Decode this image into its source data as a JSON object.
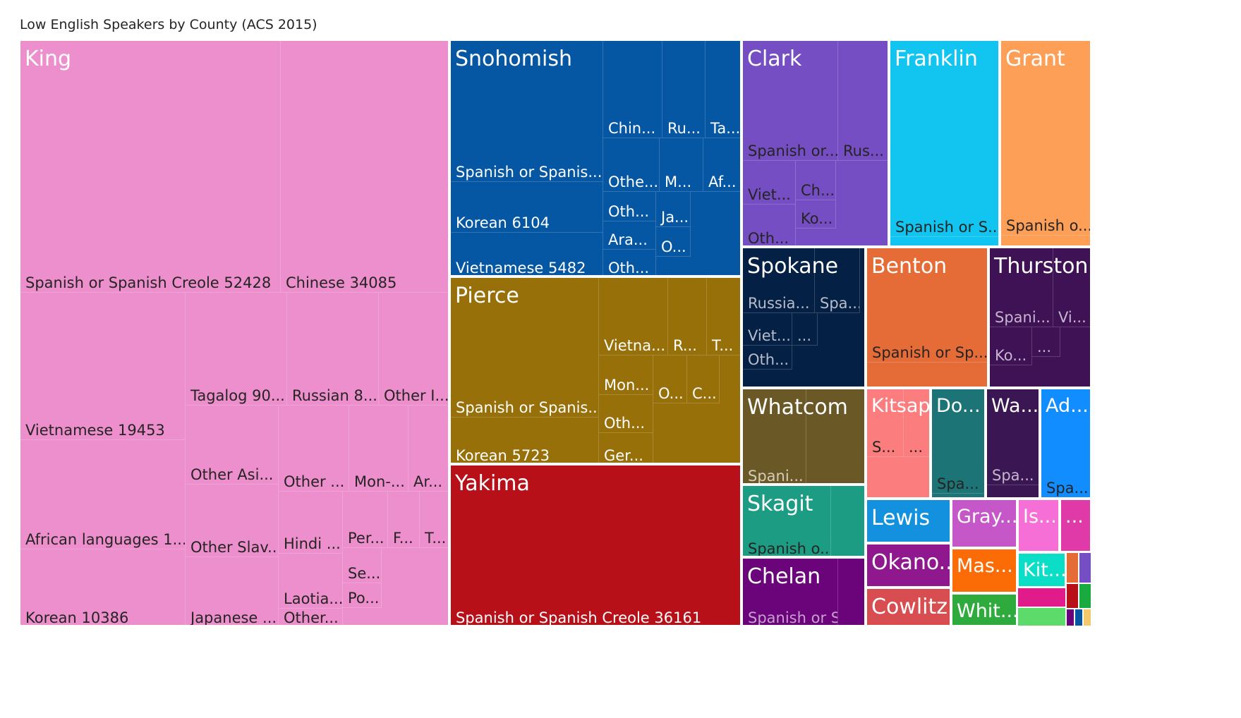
{
  "chart_title": "Low English Speakers by County (ACS 2015)",
  "chart_data": {
    "type": "treemap",
    "title": "Low English Speakers by County (ACS 2015)",
    "counties": [
      {
        "name": "King",
        "color": "#ed8fcc",
        "text_color": "#252423",
        "languages": [
          {
            "label": "Spanish or Spanish Creole 52428",
            "value": 52428
          },
          {
            "label": "Chinese 34085",
            "value": 34085
          },
          {
            "label": "Vietnamese 19453",
            "value": 19453
          },
          {
            "label": "African languages 1...",
            "value": 14400
          },
          {
            "label": "Korean 10386",
            "value": 10386
          },
          {
            "label": "Tagalog 90...",
            "value": 9000
          },
          {
            "label": "Russian 8...",
            "value": 8000
          },
          {
            "label": "Other I...",
            "value": 6000
          },
          {
            "label": "Other Asi...",
            "value": 5100
          },
          {
            "label": "Other ...",
            "value": 4900
          },
          {
            "label": "Mon-...",
            "value": 3600
          },
          {
            "label": "Ar...",
            "value": 2200
          },
          {
            "label": "Other Slav...",
            "value": 3900
          },
          {
            "label": "Hindi ...",
            "value": 2600
          },
          {
            "label": "Per...",
            "value": 1800
          },
          {
            "label": "F...",
            "value": 1100
          },
          {
            "label": "T...",
            "value": 1100
          },
          {
            "label": "Japanese ...",
            "value": 3500
          },
          {
            "label": "Laotia...",
            "value": 2200
          },
          {
            "label": "Se...",
            "value": 1200
          },
          {
            "label": "Po...",
            "value": 1100
          },
          {
            "label": "Other...",
            "value": 2400
          }
        ]
      },
      {
        "name": "Snohomish",
        "color": "#0556a3",
        "text_color": "#ffffff",
        "languages": [
          {
            "label": "Spanish or Spanis...",
            "value": 14000
          },
          {
            "label": "Korean 6104",
            "value": 6104
          },
          {
            "label": "Vietnamese 5482",
            "value": 5482
          },
          {
            "label": "Chin...",
            "value": 2500
          },
          {
            "label": "Ru...",
            "value": 1800
          },
          {
            "label": "Ta...",
            "value": 1600
          },
          {
            "label": "Othe...",
            "value": 1500
          },
          {
            "label": "M...",
            "value": 1200
          },
          {
            "label": "Af...",
            "value": 1100
          },
          {
            "label": "Oth...",
            "value": 1000
          },
          {
            "label": "Ja...",
            "value": 700
          },
          {
            "label": "Ara...",
            "value": 800
          },
          {
            "label": "O...",
            "value": 600
          },
          {
            "label": "Oth...",
            "value": 700
          }
        ]
      },
      {
        "name": "Pierce",
        "color": "#987009",
        "text_color": "#ffffff",
        "languages": [
          {
            "label": "Spanish or Spanis...",
            "value": 12000
          },
          {
            "label": "Korean 5723",
            "value": 5723
          },
          {
            "label": "Vietna...",
            "value": 3000
          },
          {
            "label": "R...",
            "value": 1700
          },
          {
            "label": "T...",
            "value": 1400
          },
          {
            "label": "Mon...",
            "value": 1800
          },
          {
            "label": "O...",
            "value": 1000
          },
          {
            "label": "C...",
            "value": 1000
          },
          {
            "label": "Oth...",
            "value": 1200
          },
          {
            "label": "Ger...",
            "value": 1000
          }
        ]
      },
      {
        "name": "Yakima",
        "color": "#b71018",
        "text_color": "#ffffff",
        "languages": [
          {
            "label": "Spanish or Spanish Creole 36161",
            "value": 36161
          }
        ]
      },
      {
        "name": "Clark",
        "color": "#744ec2",
        "text_color": "#252423",
        "languages": [
          {
            "label": "Spanish or...",
            "value": 5500
          },
          {
            "label": "Rus...",
            "value": 3000
          },
          {
            "label": "Viet...",
            "value": 1400
          },
          {
            "label": "Ch...",
            "value": 1000
          },
          {
            "label": "Oth...",
            "value": 1300
          },
          {
            "label": "Ko...",
            "value": 900
          }
        ]
      },
      {
        "name": "Franklin",
        "color": "#12c5f0",
        "text_color": "#252423",
        "languages": [
          {
            "label": "Spanish or S...",
            "value": 9000
          }
        ]
      },
      {
        "name": "Grant",
        "color": "#fd9f56",
        "text_color": "#252423",
        "languages": [
          {
            "label": "Spanish o...",
            "value": 8700
          }
        ]
      },
      {
        "name": "Spokane",
        "color": "#052045",
        "text_color": "#b8bcc8",
        "languages": [
          {
            "label": "Russia...",
            "value": 1700
          },
          {
            "label": "Spa...",
            "value": 1200
          },
          {
            "label": "Viet...",
            "value": 900
          },
          {
            "label": "...",
            "value": 500
          },
          {
            "label": "Oth...",
            "value": 700
          }
        ]
      },
      {
        "name": "Benton",
        "color": "#e66c37",
        "text_color": "#252423",
        "languages": [
          {
            "label": "Spanish or Sp...",
            "value": 5900
          }
        ]
      },
      {
        "name": "Thurston",
        "color": "#3e1255",
        "text_color": "#c6b5cf",
        "languages": [
          {
            "label": "Spani...",
            "value": 1800
          },
          {
            "label": "Vi...",
            "value": 900
          },
          {
            "label": "Ko...",
            "value": 800
          },
          {
            "label": "...",
            "value": 500
          }
        ]
      },
      {
        "name": "Whatcom",
        "color": "#6a5826",
        "text_color": "#d4cdb8",
        "languages": [
          {
            "label": "Spani...",
            "value": 2500
          }
        ]
      },
      {
        "name": "Kitsap",
        "color": "#fc7d7e",
        "text_color": "#252423",
        "languages": [
          {
            "label": "S...",
            "value": 900
          },
          {
            "label": "...",
            "value": 600
          }
        ]
      },
      {
        "name": "Do...",
        "color": "#1c7477",
        "text_color": "#252423",
        "languages": [
          {
            "label": "Spa...",
            "value": 2100
          }
        ]
      },
      {
        "name": "Wa...",
        "color": "#3a1753",
        "text_color": "#c6b5cf",
        "languages": [
          {
            "label": "Spa...",
            "value": 1500
          }
        ]
      },
      {
        "name": "Ad...",
        "color": "#118dff",
        "text_color": "#252423",
        "languages": [
          {
            "label": "Spa...",
            "value": 1700
          }
        ]
      },
      {
        "name": "Skagit",
        "color": "#1d9c84",
        "text_color": "#252423",
        "languages": [
          {
            "label": "Spanish o...",
            "value": 2900
          }
        ]
      },
      {
        "name": "Chelan",
        "color": "#6b037b",
        "text_color": "#c7a0d0",
        "languages": [
          {
            "label": "Spanish or S...",
            "value": 2700
          }
        ]
      },
      {
        "name": "Lewis",
        "color": "#1391de",
        "text_color": "#ffffff",
        "languages": []
      },
      {
        "name": "Gray...",
        "color": "#c657c8",
        "text_color": "#ffffff",
        "languages": []
      },
      {
        "name": "Is...",
        "color": "#f66fd6",
        "text_color": "#ffffff",
        "languages": []
      },
      {
        "name": "...",
        "color": "#df3aa8",
        "text_color": "#ffffff",
        "languages": []
      },
      {
        "name": "Okano...",
        "color": "#90188f",
        "text_color": "#ffffff",
        "languages": []
      },
      {
        "name": "Mas...",
        "color": "#fb6c06",
        "text_color": "#ffffff",
        "languages": []
      },
      {
        "name": "Kit...",
        "color": "#0bdec6",
        "text_color": "#ffffff",
        "languages": []
      },
      {
        "name": "Cowlitz",
        "color": "#d84d4f",
        "text_color": "#ffffff",
        "languages": []
      },
      {
        "name": "Whit...",
        "color": "#2faa3c",
        "text_color": "#ffffff",
        "languages": []
      }
    ]
  }
}
